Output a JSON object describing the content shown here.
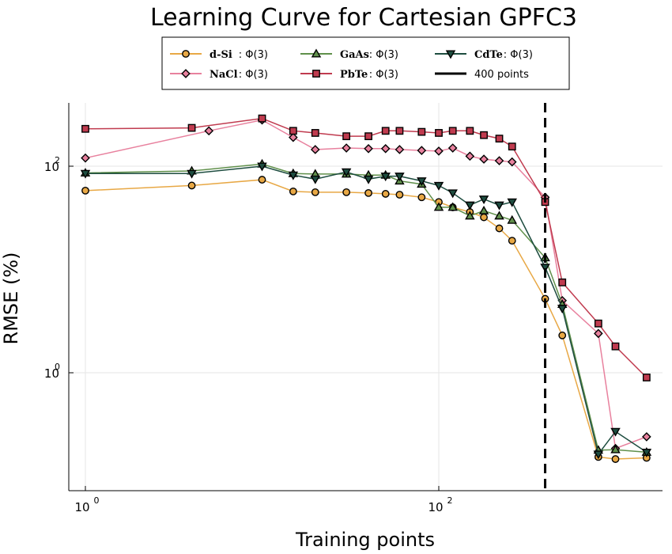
{
  "chart_data": {
    "type": "line",
    "title": "Learning Curve for Cartesian GPFC3",
    "xlabel": "Training points",
    "ylabel": "RMSE (%)",
    "xscale": "log",
    "yscale": "log",
    "xlim": [
      0.8,
      1000
    ],
    "ylim": [
      0.1,
      500
    ],
    "xticks": [
      {
        "value": 1,
        "base": "10",
        "exp": "0"
      },
      {
        "value": 100,
        "base": "10",
        "exp": "2"
      }
    ],
    "yticks": [
      {
        "value": 1,
        "base": "10",
        "exp": "0"
      },
      {
        "value": 100,
        "base": "10",
        "exp": "2"
      }
    ],
    "grid": true,
    "legend_position": "top-center",
    "vline": {
      "x": 400,
      "label": "400 points",
      "style": "dashed",
      "color": "#000000"
    },
    "series": [
      {
        "name": "d-Si",
        "suffix": ": Φ(3)",
        "color": "#E8A845",
        "marker": "circle",
        "x": [
          1,
          4,
          10,
          15,
          20,
          30,
          40,
          50,
          60,
          80,
          100,
          120,
          150,
          180,
          220,
          260,
          400,
          500,
          800,
          1000,
          1500
        ],
        "y": [
          58,
          65,
          74,
          57,
          56,
          56,
          55,
          54,
          53,
          50,
          45,
          40,
          36,
          32,
          25,
          19,
          5.2,
          2.3,
          0.153,
          0.146,
          0.15
        ]
      },
      {
        "name": "NaCl",
        "suffix": ": Φ(3)",
        "color": "#E8819E",
        "marker": "diamond",
        "x": [
          1,
          5,
          10,
          15,
          20,
          30,
          40,
          50,
          60,
          80,
          100,
          120,
          150,
          180,
          220,
          260,
          400,
          500,
          800,
          1000,
          1500
        ],
        "y": [
          120,
          220,
          280,
          190,
          145,
          150,
          148,
          148,
          145,
          142,
          140,
          150,
          125,
          117,
          113,
          110,
          50,
          5,
          2.4,
          0.185,
          0.24
        ]
      },
      {
        "name": "GaAs",
        "suffix": ": Φ(3)",
        "color": "#60904B",
        "marker": "triangle-up",
        "x": [
          1,
          4,
          10,
          15,
          20,
          30,
          40,
          50,
          60,
          80,
          100,
          120,
          150,
          180,
          220,
          260,
          400,
          500,
          800,
          1000,
          1500
        ],
        "y": [
          86,
          90,
          105,
          85,
          84,
          84,
          82,
          82,
          72,
          67,
          40,
          40,
          33,
          37,
          33,
          30,
          13,
          4.6,
          0.178,
          0.18,
          0.17
        ]
      },
      {
        "name": "CdTe",
        "suffix": ": Φ(3)",
        "color": "#1E4D40",
        "marker": "triangle-down",
        "x": [
          1,
          4,
          10,
          15,
          20,
          30,
          40,
          50,
          60,
          80,
          100,
          120,
          150,
          180,
          220,
          260,
          400,
          500,
          800,
          1000,
          1500
        ],
        "y": [
          85,
          85,
          100,
          82,
          75,
          88,
          75,
          80,
          80,
          72,
          65,
          55,
          42,
          48,
          42,
          45,
          10.5,
          4.2,
          0.163,
          0.27,
          0.17
        ]
      },
      {
        "name": "PbTe",
        "suffix": ": Φ(3)",
        "color": "#C03B4F",
        "marker": "square",
        "x": [
          1,
          4,
          10,
          15,
          20,
          30,
          40,
          50,
          60,
          80,
          100,
          120,
          150,
          180,
          220,
          260,
          400,
          500,
          800,
          1000,
          1500
        ],
        "y": [
          230,
          235,
          290,
          220,
          210,
          195,
          195,
          220,
          220,
          215,
          210,
          220,
          220,
          200,
          185,
          155,
          45,
          7.5,
          3.0,
          1.8,
          0.9
        ]
      }
    ]
  }
}
